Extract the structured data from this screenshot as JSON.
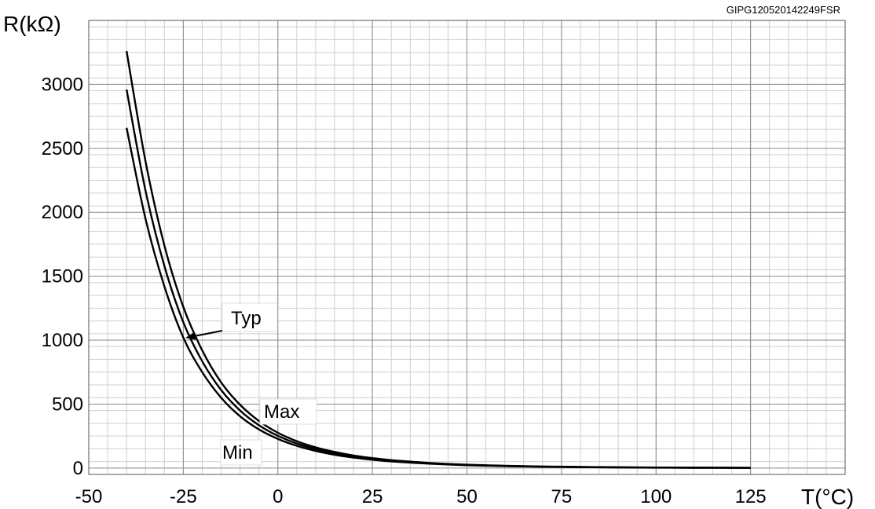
{
  "chart_data": {
    "type": "line",
    "code_label": "GIPG120520142249FSR",
    "xlabel": "T(°C)",
    "ylabel": "R(kΩ)",
    "xlim": [
      -50,
      150
    ],
    "ylim": [
      -50,
      3500
    ],
    "xticks": [
      -50,
      -25,
      0,
      25,
      50,
      75,
      100,
      125
    ],
    "yticks": [
      0,
      500,
      1000,
      1500,
      2000,
      2500,
      3000
    ],
    "grid": true,
    "series": [
      {
        "name": "Max",
        "x": [
          -40,
          -35,
          -30,
          -25,
          -20,
          -15,
          -10,
          -5,
          0,
          5,
          10,
          15,
          20,
          25,
          30,
          40,
          50,
          60,
          70,
          80,
          90,
          100,
          110,
          125
        ],
        "values": [
          3260,
          2400,
          1740,
          1260,
          920,
          670,
          495,
          368,
          276,
          210,
          162,
          126,
          98,
          78,
          62,
          40,
          26,
          18,
          12,
          9,
          6,
          4,
          3,
          2
        ]
      },
      {
        "name": "Typ",
        "x": [
          -40,
          -35,
          -30,
          -25,
          -20,
          -15,
          -10,
          -5,
          0,
          5,
          10,
          15,
          20,
          25,
          30,
          40,
          50,
          60,
          70,
          80,
          90,
          100,
          110,
          125
        ],
        "values": [
          2960,
          2170,
          1580,
          1140,
          835,
          610,
          450,
          335,
          252,
          192,
          148,
          115,
          90,
          72,
          57,
          37,
          24,
          16,
          11,
          8,
          5,
          4,
          3,
          2
        ]
      },
      {
        "name": "Min",
        "x": [
          -40,
          -35,
          -30,
          -25,
          -20,
          -15,
          -10,
          -5,
          0,
          5,
          10,
          15,
          20,
          25,
          30,
          40,
          50,
          60,
          70,
          80,
          90,
          100,
          110,
          125
        ],
        "values": [
          2660,
          1950,
          1420,
          1020,
          750,
          550,
          405,
          302,
          228,
          174,
          134,
          104,
          82,
          65,
          52,
          34,
          22,
          15,
          10,
          7,
          5,
          3,
          2,
          1
        ]
      }
    ],
    "annotations": [
      {
        "text": "Typ",
        "series": "Typ",
        "arrow": true
      },
      {
        "text": "Max",
        "series": "Max",
        "arrow": false
      },
      {
        "text": "Min",
        "series": "Min",
        "arrow": false
      }
    ]
  }
}
